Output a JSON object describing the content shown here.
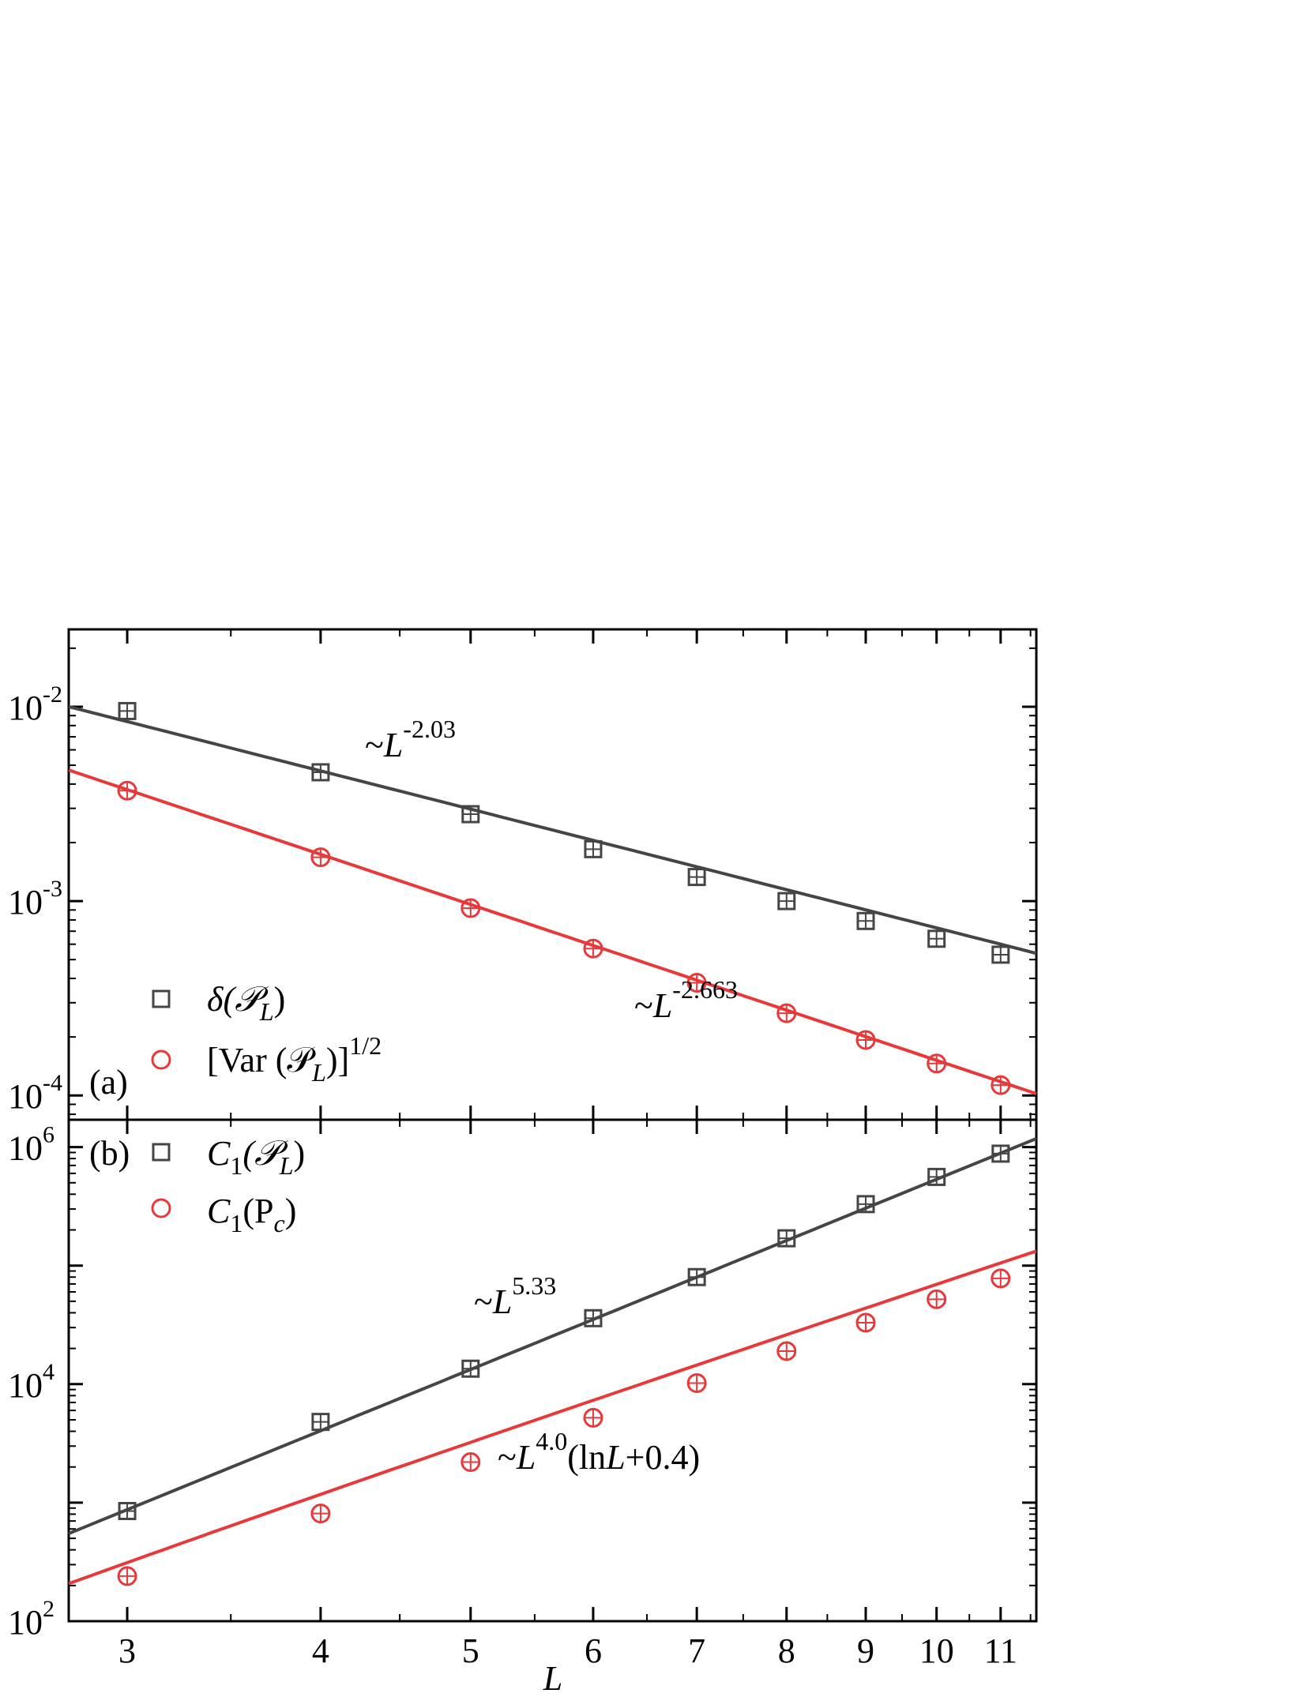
{
  "colors": {
    "black_series": "#454545",
    "red_series": "#e8393a",
    "axis": "#000000"
  },
  "chart_data": [
    {
      "type": "scatter",
      "panel_label": "(a)",
      "x_scale": "log",
      "y_scale": "log",
      "xlim": [
        2.75,
        11.6
      ],
      "ylim": [
        7.5e-05,
        0.025
      ],
      "y_ticks": [
        {
          "value": 0.01,
          "base": "10",
          "exp": "-2"
        },
        {
          "value": 0.001,
          "base": "10",
          "exp": "-3"
        },
        {
          "value": 0.0001,
          "base": "10",
          "exp": "-4"
        }
      ],
      "series": [
        {
          "name": "δ(𝒫L)",
          "legend": {
            "main": "δ(𝒫",
            "sub": "L",
            "close": ")"
          },
          "marker": "square",
          "color": "#454545",
          "x": [
            3,
            4,
            5,
            6,
            7,
            8,
            9,
            10,
            11
          ],
          "y": [
            0.0095,
            0.0046,
            0.0028,
            0.00185,
            0.00133,
            0.001,
            0.00079,
            0.00064,
            0.00053
          ],
          "fit": {
            "prefactor": 0.078,
            "exponent": -2.03,
            "label": {
              "prefix": "~",
              "var": "L",
              "exp": "-2.03"
            }
          }
        },
        {
          "name": "[Var (𝒫L)]1/2",
          "legend": {
            "main": "[Var (𝒫",
            "sub": "L",
            "close": ")]",
            "sup": "1/2"
          },
          "marker": "circle",
          "color": "#e8393a",
          "x": [
            3,
            4,
            5,
            6,
            7,
            8,
            9,
            10,
            11
          ],
          "y": [
            0.0037,
            0.00168,
            0.00092,
            0.00057,
            0.00038,
            0.000265,
            0.000193,
            0.000146,
            0.000113
          ],
          "fit": {
            "prefactor": 0.0698,
            "exponent": -2.663,
            "label": {
              "prefix": "~",
              "var": "L",
              "exp": "-2.663"
            }
          }
        }
      ]
    },
    {
      "type": "scatter",
      "panel_label": "(b)",
      "x_scale": "log",
      "y_scale": "log",
      "xlim": [
        2.75,
        11.6
      ],
      "ylim": [
        100,
        1700000
      ],
      "xlabel": "L",
      "x_ticks": [
        3,
        4,
        5,
        6,
        7,
        8,
        9,
        10,
        11
      ],
      "y_ticks": [
        {
          "value": 1000000,
          "base": "10",
          "exp": "6"
        },
        {
          "value": 10000,
          "base": "10",
          "exp": "4"
        },
        {
          "value": 100,
          "base": "10",
          "exp": "2"
        }
      ],
      "series": [
        {
          "name": "C1(𝒫L)",
          "legend": {
            "main": "C",
            "sub1": "1",
            "mid": "(𝒫",
            "sub": "L",
            "close": ")"
          },
          "marker": "square",
          "color": "#454545",
          "x": [
            3,
            4,
            5,
            6,
            7,
            8,
            9,
            10,
            11
          ],
          "y": [
            850,
            4800,
            13500,
            36000,
            80000,
            170000,
            330000,
            560000,
            880000
          ],
          "fit": {
            "prefactor": 2.5,
            "exponent": 5.33,
            "label": {
              "prefix": "~",
              "var": "L",
              "exp": "5.33"
            }
          }
        },
        {
          "name": "C1(Pc)",
          "legend": {
            "main": "C",
            "sub1": "1",
            "mid": "(P",
            "sub": "c",
            "close": ")"
          },
          "marker": "circle",
          "color": "#e8393a",
          "x": [
            3,
            4,
            5,
            6,
            7,
            8,
            9,
            10,
            11
          ],
          "y": [
            240,
            810,
            2200,
            5200,
            10200,
            19000,
            33000,
            52000,
            78000
          ],
          "fit": {
            "prefactor": 2.57,
            "exponent": 4.0,
            "log_offset": 0.4,
            "label": {
              "prefix": "~",
              "var": "L",
              "exp": "4.0",
              "suffix_open": "(ln",
              "suffix_var": "L",
              "suffix_close": "+0.4)"
            }
          }
        }
      ]
    }
  ]
}
